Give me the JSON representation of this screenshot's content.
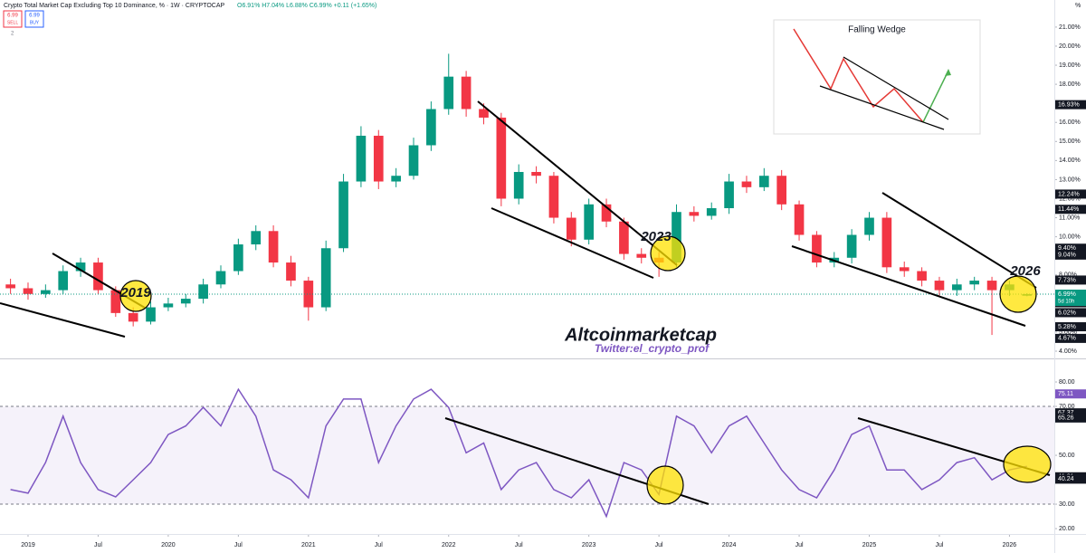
{
  "header": {
    "title": "Crypto Total Market Cap Excluding Top 10 Dominance, % · 1W · CRYPTOCAP",
    "ohlc": "O6.91% H7.04% L6.88% C6.99% +0.11 (+1.65%)",
    "indicators": "2",
    "axis_unit": "%"
  },
  "trade_buttons": [
    {
      "price": "6.99",
      "label": "SELL"
    },
    {
      "price": "6.99",
      "label": "BUY"
    }
  ],
  "inset": {
    "title": "Falling Wedge"
  },
  "chart_data": [
    {
      "type": "candlestick",
      "title": "Crypto Total Market Cap Excluding Top 10 Dominance",
      "x": [
        2018.875,
        2019,
        2019.125,
        2019.25,
        2019.375,
        2019.5,
        2019.625,
        2019.75,
        2019.875,
        2020,
        2020.125,
        2020.25,
        2020.375,
        2020.5,
        2020.625,
        2020.75,
        2020.875,
        2021,
        2021.125,
        2021.25,
        2021.375,
        2021.5,
        2021.625,
        2021.75,
        2021.875,
        2022,
        2022.125,
        2022.25,
        2022.375,
        2022.5,
        2022.625,
        2022.75,
        2022.875,
        2023,
        2023.125,
        2023.25,
        2023.375,
        2023.5,
        2023.625,
        2023.75,
        2023.875,
        2024,
        2024.125,
        2024.25,
        2024.375,
        2024.5,
        2024.625,
        2024.75,
        2024.875,
        2025,
        2025.125,
        2025.25,
        2025.375,
        2025.5,
        2025.625,
        2025.75,
        2025.875,
        2026,
        2026.125
      ],
      "open": [
        7.5,
        7.3,
        7.0,
        7.2,
        8.2,
        8.65,
        7.2,
        6.0,
        5.55,
        6.3,
        6.5,
        6.75,
        7.5,
        8.2,
        9.6,
        10.3,
        8.65,
        7.7,
        6.3,
        9.4,
        12.9,
        15.3,
        12.9,
        13.2,
        14.8,
        16.7,
        18.4,
        16.7,
        16.25,
        12.0,
        13.4,
        13.2,
        11.0,
        9.85,
        11.7,
        10.8,
        9.1,
        8.9,
        8.65,
        11.3,
        11.1,
        11.5,
        12.9,
        12.6,
        13.2,
        11.7,
        10.1,
        8.65,
        8.9,
        10.1,
        11.0,
        8.4,
        8.2,
        7.7,
        7.2,
        7.5,
        7.7,
        7.2,
        6.91
      ],
      "high": [
        7.8,
        7.6,
        7.5,
        8.5,
        8.9,
        8.9,
        7.4,
        6.3,
        6.6,
        6.8,
        7.0,
        7.8,
        8.5,
        9.9,
        10.6,
        10.6,
        9.0,
        7.9,
        9.8,
        13.3,
        15.8,
        15.6,
        13.6,
        15.2,
        17.1,
        19.6,
        18.7,
        17.0,
        16.5,
        13.8,
        13.7,
        13.4,
        11.3,
        12.0,
        12.0,
        11.0,
        9.4,
        9.2,
        11.7,
        11.6,
        11.8,
        13.3,
        13.2,
        13.6,
        13.5,
        11.9,
        10.3,
        9.2,
        10.4,
        11.3,
        11.3,
        8.7,
        8.4,
        7.9,
        7.8,
        7.9,
        7.9,
        7.7,
        7.04
      ],
      "low": [
        7.0,
        6.7,
        6.8,
        7.0,
        7.9,
        7.0,
        5.8,
        5.3,
        5.4,
        6.1,
        6.3,
        6.5,
        7.3,
        8.0,
        9.3,
        8.4,
        7.4,
        5.6,
        6.1,
        9.2,
        12.6,
        12.5,
        12.6,
        13.0,
        14.5,
        16.4,
        16.3,
        15.9,
        11.6,
        11.7,
        12.8,
        10.7,
        9.5,
        9.6,
        10.5,
        8.8,
        8.6,
        7.9,
        8.4,
        10.8,
        10.9,
        11.2,
        12.3,
        12.4,
        11.4,
        9.8,
        8.4,
        8.4,
        8.6,
        9.8,
        8.1,
        7.9,
        7.4,
        6.9,
        6.9,
        7.2,
        4.85,
        6.9,
        6.88
      ],
      "close": [
        7.3,
        7.0,
        7.2,
        8.2,
        8.65,
        7.2,
        6.0,
        5.55,
        6.3,
        6.5,
        6.75,
        7.5,
        8.2,
        9.6,
        10.3,
        8.65,
        7.7,
        6.3,
        9.4,
        12.9,
        15.3,
        12.9,
        13.2,
        14.8,
        16.7,
        18.4,
        16.7,
        16.25,
        12.0,
        13.4,
        13.2,
        11.0,
        9.85,
        11.7,
        10.8,
        9.1,
        8.9,
        8.65,
        11.3,
        11.1,
        11.5,
        12.9,
        12.6,
        13.2,
        11.7,
        10.1,
        8.65,
        8.9,
        10.1,
        11.0,
        8.4,
        8.2,
        7.7,
        7.2,
        7.5,
        7.7,
        7.2,
        7.5,
        6.99
      ],
      "up_color": "#089981",
      "down_color": "#f23645",
      "xlim": [
        2018.8,
        2026.32
      ],
      "ylim": [
        3.62,
        22.42
      ],
      "yticks": [
        {
          "value": 4,
          "label": "4.00%"
        },
        {
          "value": 5,
          "label": "5.00%"
        },
        {
          "value": 6,
          "label": "6.00%"
        },
        {
          "value": 7,
          "label": "7.00%"
        },
        {
          "value": 8,
          "label": "8.00%"
        },
        {
          "value": 9,
          "label": "9.00%"
        },
        {
          "value": 10,
          "label": "10.00%"
        },
        {
          "value": 11,
          "label": "11.00%"
        },
        {
          "value": 12,
          "label": "12.00%"
        },
        {
          "value": 13,
          "label": "13.00%"
        },
        {
          "value": 14,
          "label": "14.00%"
        },
        {
          "value": 15,
          "label": "15.00%"
        },
        {
          "value": 16,
          "label": "16.00%"
        },
        {
          "value": 17,
          "label": "17.00%"
        },
        {
          "value": 18,
          "label": "18.00%"
        },
        {
          "value": 19,
          "label": "19.00%"
        },
        {
          "value": 20,
          "label": "20.00%"
        },
        {
          "value": 21,
          "label": "21.00%"
        }
      ],
      "price_labels": [
        {
          "value": 16.93,
          "label": "16.93%"
        },
        {
          "value": 12.24,
          "label": "12.24%"
        },
        {
          "value": 11.44,
          "label": "11.44%"
        },
        {
          "value": 9.4,
          "label": "9.40%"
        },
        {
          "value": 9.04,
          "label": "9.04%"
        },
        {
          "value": 7.73,
          "label": "7.73%"
        },
        {
          "value": 6.54,
          "label": "6.54%"
        },
        {
          "value": 6.02,
          "label": "6.02%"
        },
        {
          "value": 5.28,
          "label": "5.28%"
        },
        {
          "value": 4.67,
          "label": "4.67%"
        }
      ],
      "current_price": {
        "value": 6.99,
        "label": "6.99%"
      },
      "countdown": "5d 10h",
      "annotations": [
        "2019",
        "2023",
        "2026",
        "Altcoinmarketcap",
        "Twitter:el_crypto_prof"
      ]
    },
    {
      "type": "line",
      "title": "RSI",
      "x": [
        2018.875,
        2019,
        2019.125,
        2019.25,
        2019.375,
        2019.5,
        2019.625,
        2019.75,
        2019.875,
        2020,
        2020.125,
        2020.25,
        2020.375,
        2020.5,
        2020.625,
        2020.75,
        2020.875,
        2021,
        2021.125,
        2021.25,
        2021.375,
        2021.5,
        2021.625,
        2021.75,
        2021.875,
        2022,
        2022.125,
        2022.25,
        2022.375,
        2022.5,
        2022.625,
        2022.75,
        2022.875,
        2023,
        2023.125,
        2023.25,
        2023.375,
        2023.5,
        2023.625,
        2023.75,
        2023.875,
        2024,
        2024.125,
        2024.25,
        2024.375,
        2024.5,
        2024.625,
        2024.75,
        2024.875,
        2025,
        2025.125,
        2025.25,
        2025.375,
        2025.5,
        2025.625,
        2025.75,
        2025.875,
        2026,
        2026.125
      ],
      "series": [
        {
          "color": "#7e57c2",
          "values": [
            36,
            34.5,
            47,
            66,
            47,
            36,
            33,
            40,
            47,
            58.5,
            62,
            69.6,
            62,
            77,
            66,
            44,
            40,
            32.6,
            62,
            73,
            73,
            47,
            62,
            73,
            77,
            69.6,
            51,
            55,
            36,
            44,
            47,
            36,
            32.6,
            40,
            25,
            47,
            44,
            34,
            66,
            62,
            51,
            62,
            66,
            55,
            44,
            36,
            32.6,
            44,
            58.5,
            62,
            44,
            44,
            36,
            40,
            47,
            49,
            40,
            44,
            45.5
          ]
        }
      ],
      "band": [
        30,
        70
      ],
      "band_color": "#7e57c2",
      "xlim": [
        2018.8,
        2026.32
      ],
      "ylim": [
        17.8,
        88.9
      ],
      "yticks": [
        {
          "value": 20,
          "label": "20.00"
        },
        {
          "value": 30,
          "label": "30.00"
        },
        {
          "value": 50,
          "label": "50.00"
        },
        {
          "value": 70,
          "label": "70.00"
        },
        {
          "value": 80,
          "label": "80.00"
        }
      ],
      "value_tags": [
        {
          "value": 75.11,
          "label": "75.11",
          "color": "#7e57c2"
        },
        {
          "value": 67.37,
          "label": "67.37",
          "color": "#131722"
        },
        {
          "value": 65.26,
          "label": "65.26",
          "color": "#131722"
        },
        {
          "value": 41.21,
          "label": "41.21",
          "color": "#131722"
        },
        {
          "value": 40.24,
          "label": "40.24",
          "color": "#131722"
        }
      ],
      "xticks": [
        {
          "value": 2019,
          "label": "2019"
        },
        {
          "value": 2019.5,
          "label": "Jul"
        },
        {
          "value": 2020,
          "label": "2020"
        },
        {
          "value": 2020.5,
          "label": "Jul"
        },
        {
          "value": 2021,
          "label": "2021"
        },
        {
          "value": 2021.5,
          "label": "Jul"
        },
        {
          "value": 2022,
          "label": "2022"
        },
        {
          "value": 2022.5,
          "label": "Jul"
        },
        {
          "value": 2023,
          "label": "2023"
        },
        {
          "value": 2023.5,
          "label": "Jul"
        },
        {
          "value": 2024,
          "label": "2024"
        },
        {
          "value": 2024.5,
          "label": "Jul"
        },
        {
          "value": 2025,
          "label": "2025"
        },
        {
          "value": 2025.5,
          "label": "Jul"
        },
        {
          "value": 2026,
          "label": "2026"
        }
      ]
    }
  ]
}
